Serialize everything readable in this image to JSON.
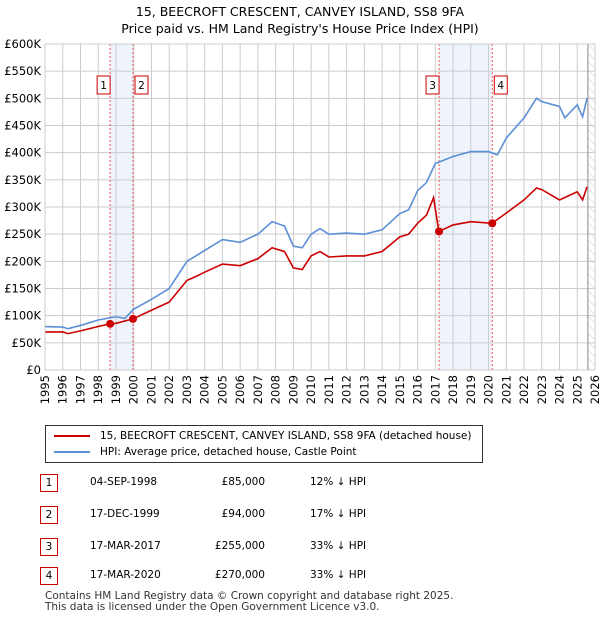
{
  "chart_data": {
    "type": "line",
    "title": "15, BEECROFT CRESCENT, CANVEY ISLAND, SS8 9FA",
    "subtitle": "Price paid vs. HM Land Registry's House Price Index (HPI)",
    "xlim": [
      1995,
      2026
    ],
    "ylim": [
      0,
      600000
    ],
    "y_ticks": [
      0,
      50000,
      100000,
      150000,
      200000,
      250000,
      300000,
      350000,
      400000,
      450000,
      500000,
      550000,
      600000
    ],
    "y_tick_labels": [
      "£0",
      "£50K",
      "£100K",
      "£150K",
      "£200K",
      "£250K",
      "£300K",
      "£350K",
      "£400K",
      "£450K",
      "£500K",
      "£550K",
      "£600K"
    ],
    "x_tick_labels": [
      "1995",
      "1996",
      "1997",
      "1998",
      "1999",
      "2000",
      "2001",
      "2002",
      "2003",
      "2004",
      "2005",
      "2006",
      "2007",
      "2008",
      "2009",
      "2010",
      "2011",
      "2012",
      "2013",
      "2014",
      "2015",
      "2016",
      "2017",
      "2018",
      "2019",
      "2020",
      "2021",
      "2022",
      "2023",
      "2024",
      "2025",
      "2026"
    ],
    "grid": true,
    "forecast_start": 2025.6,
    "series": [
      {
        "name": "15, BEECROFT CRESCENT, CANVEY ISLAND, SS8 9FA (detached house)",
        "color": "#cc0000",
        "x": [
          1995,
          1996,
          1996.3,
          1997,
          1998,
          1998.67,
          1999,
          1999.96,
          2001,
          2002,
          2003,
          2003.5,
          2004,
          2005,
          2006,
          2007,
          2007.8,
          2008.5,
          2009,
          2009.5,
          2010,
          2010.5,
          2011,
          2012,
          2013,
          2014,
          2015,
          2015.5,
          2016,
          2016.5,
          2016.9,
          2017.2,
          2018,
          2019,
          2020.2,
          2021,
          2022,
          2022.7,
          2023,
          2024,
          2025,
          2025.3,
          2025.55
        ],
        "y": [
          70000,
          70000,
          67000,
          72000,
          80000,
          85000,
          86000,
          94000,
          110000,
          125000,
          165000,
          172000,
          180000,
          195000,
          192000,
          205000,
          225000,
          218000,
          188000,
          185000,
          210000,
          218000,
          208000,
          210000,
          210000,
          218000,
          245000,
          250000,
          270000,
          285000,
          317000,
          255000,
          267000,
          273000,
          270000,
          289000,
          313000,
          335000,
          332000,
          313000,
          328000,
          313000,
          337000
        ]
      },
      {
        "name": "HPI: Average price, detached house, Castle Point",
        "color": "#5b8fd6",
        "x": [
          1995,
          1996,
          1996.3,
          1997,
          1998,
          1999,
          1999.5,
          2000,
          2001,
          2002,
          2003,
          2003.5,
          2004,
          2005,
          2006,
          2007,
          2007.8,
          2008.5,
          2009,
          2009.5,
          2010,
          2010.5,
          2011,
          2012,
          2013,
          2014,
          2015,
          2015.5,
          2016,
          2016.5,
          2017,
          2018,
          2019,
          2020,
          2020.5,
          2021,
          2022,
          2022.7,
          2023,
          2024,
          2024.3,
          2025,
          2025.3,
          2025.55
        ],
        "y": [
          80000,
          79000,
          76000,
          82000,
          92000,
          98000,
          95000,
          112000,
          130000,
          150000,
          200000,
          210000,
          220000,
          240000,
          235000,
          250000,
          273000,
          265000,
          228000,
          225000,
          250000,
          260000,
          250000,
          252000,
          250000,
          258000,
          288000,
          295000,
          330000,
          345000,
          380000,
          393000,
          402000,
          402000,
          396000,
          427000,
          464000,
          500000,
          494000,
          485000,
          464000,
          488000,
          466000,
          500000
        ]
      }
    ],
    "transactions": [
      {
        "label": "1",
        "x": 1998.67,
        "price": 85000
      },
      {
        "label": "2",
        "x": 1999.96,
        "price": 94000
      },
      {
        "label": "3",
        "x": 2017.21,
        "price": 255000
      },
      {
        "label": "4",
        "x": 2020.21,
        "price": 270000
      }
    ],
    "shaded_ranges": [
      [
        1998.67,
        1999.96
      ],
      [
        2017.21,
        2020.21
      ]
    ]
  },
  "legend": {
    "items": [
      "15, BEECROFT CRESCENT, CANVEY ISLAND, SS8 9FA (detached house)",
      "HPI: Average price, detached house, Castle Point"
    ]
  },
  "table": [
    {
      "num": "1",
      "date": "04-SEP-1998",
      "price": "£85,000",
      "hpi": "12% ↓ HPI"
    },
    {
      "num": "2",
      "date": "17-DEC-1999",
      "price": "£94,000",
      "hpi": "17% ↓ HPI"
    },
    {
      "num": "3",
      "date": "17-MAR-2017",
      "price": "£255,000",
      "hpi": "33% ↓ HPI"
    },
    {
      "num": "4",
      "date": "17-MAR-2020",
      "price": "£270,000",
      "hpi": "33% ↓ HPI"
    }
  ],
  "footer": {
    "line1": "Contains HM Land Registry data © Crown copyright and database right 2025.",
    "line2": "This data is licensed under the Open Government Licence v3.0."
  }
}
